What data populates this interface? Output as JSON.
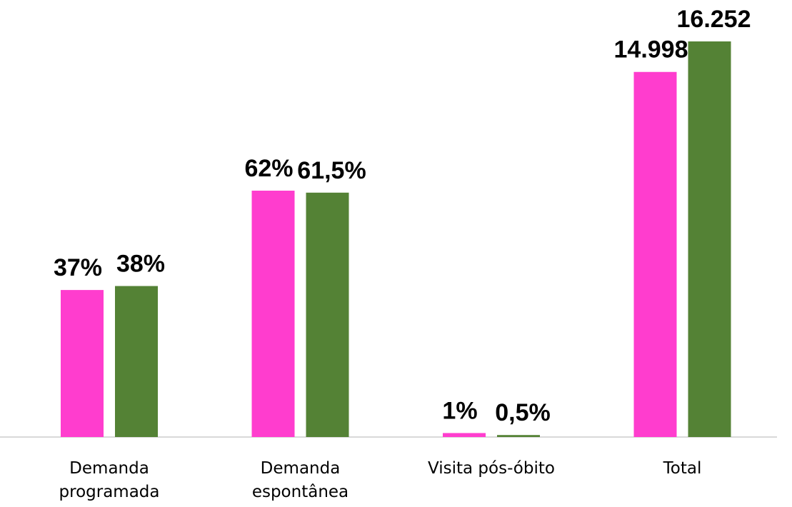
{
  "chart_data": [
    {
      "type": "bar",
      "categories": [
        "Demanda programada",
        "Demanda espontânea",
        "Visita pós-óbito"
      ],
      "series": [
        {
          "color": "#ff3dce",
          "values": [
            37,
            62,
            1
          ],
          "value_labels": [
            "37%",
            "62%",
            "1%"
          ]
        },
        {
          "color": "#548235",
          "values": [
            38,
            61.5,
            0.5
          ],
          "value_labels": [
            "38%",
            "61,5%",
            "0,5%"
          ]
        }
      ]
    },
    {
      "type": "bar",
      "categories": [
        "Total"
      ],
      "series": [
        {
          "color": "#ff3dce",
          "values": [
            14998
          ],
          "value_labels": [
            "14.998"
          ]
        },
        {
          "color": "#548235",
          "values": [
            16252
          ],
          "value_labels": [
            "16.252"
          ]
        }
      ]
    }
  ]
}
